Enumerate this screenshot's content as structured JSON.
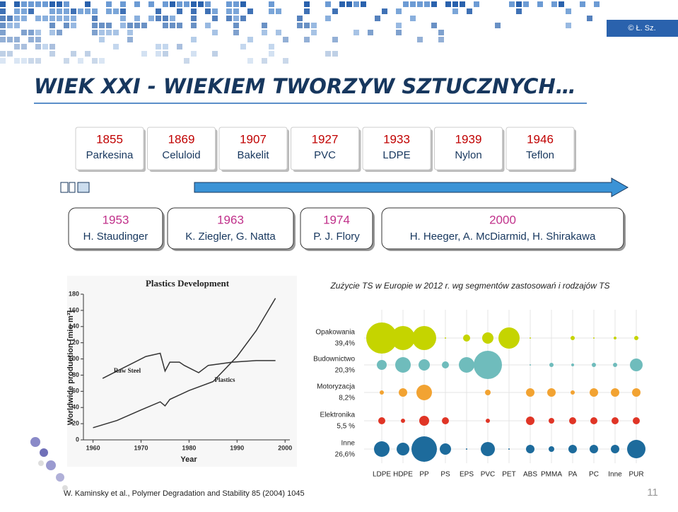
{
  "copyright": "© Ł. Sz.",
  "title": "WIEK XXI - WIEKIEM TWORZYW SZTUCZNYCH…",
  "timeline": [
    {
      "year": "1855",
      "name": "Parkesina"
    },
    {
      "year": "1869",
      "name": "Celuloid"
    },
    {
      "year": "1907",
      "name": "Bakelit"
    },
    {
      "year": "1927",
      "name": "PVC"
    },
    {
      "year": "1933",
      "name": "LDPE"
    },
    {
      "year": "1939",
      "name": "Nylon"
    },
    {
      "year": "1946",
      "name": "Teflon"
    }
  ],
  "nobel": [
    {
      "year": "1953",
      "names": "H. Staudinger"
    },
    {
      "year": "1963",
      "names": "K. Ziegler, G. Natta"
    },
    {
      "year": "1974",
      "names": "P. J. Flory"
    },
    {
      "year": "2000",
      "names": "H. Heeger, A. McDiarmid,  H. Shirakawa"
    }
  ],
  "chart_data": [
    {
      "type": "line",
      "title": "Plastics Development",
      "xlabel": "Year",
      "ylabel": "Worldwide production [mio m³]",
      "xlim": [
        1958,
        2001
      ],
      "ylim": [
        0,
        180
      ],
      "xticks": [
        1960,
        1970,
        1980,
        1990,
        2000
      ],
      "yticks": [
        0,
        20,
        40,
        60,
        80,
        100,
        120,
        140,
        160,
        180
      ],
      "series": [
        {
          "name": "Raw Steel",
          "color": "#333333",
          "x": [
            1962,
            1965,
            1971,
            1974,
            1975,
            1976,
            1978,
            1979,
            1982,
            1984,
            1989,
            1994,
            1998
          ],
          "values": [
            76,
            85,
            103,
            107,
            85,
            96,
            96,
            92,
            83,
            92,
            96,
            98,
            98
          ]
        },
        {
          "name": "Plastics",
          "color": "#333333",
          "x": [
            1960,
            1965,
            1970,
            1974,
            1975,
            1976,
            1980,
            1985,
            1990,
            1994,
            1998
          ],
          "values": [
            15,
            24,
            37,
            47,
            42,
            50,
            61,
            72,
            103,
            135,
            175
          ]
        }
      ]
    },
    {
      "type": "bubble",
      "title": "Zużycie TS w Europie w 2012 r. wg segmentów zastosowań i rodzajów TS",
      "categories": [
        "LDPE",
        "HDPE",
        "PP",
        "PS",
        "EPS",
        "PVC",
        "PET",
        "ABS",
        "PMMA",
        "PA",
        "PC",
        "Inne",
        "PUR"
      ],
      "series": [
        {
          "name": "Opakowania",
          "share": "39,4%",
          "color": "#c5d400",
          "values": [
            22,
            17,
            17,
            1,
            5,
            8,
            15,
            1,
            null,
            3,
            1,
            2,
            3
          ]
        },
        {
          "name": "Budownictwo",
          "share": "20,3%",
          "color": "#6fbcbc",
          "values": [
            7,
            11,
            8,
            5,
            11,
            20,
            null,
            1,
            3,
            2,
            3,
            3,
            9
          ]
        },
        {
          "name": "Motoryzacja",
          "share": "8,2%",
          "color": "#f2a332",
          "values": [
            3,
            6,
            11,
            null,
            null,
            4,
            null,
            6,
            6,
            3,
            6,
            6,
            6
          ]
        },
        {
          "name": "Elektronika",
          "share": "5,5 %",
          "color": "#e03526",
          "values": [
            5,
            3,
            7,
            5,
            null,
            3,
            null,
            6,
            4,
            5,
            5,
            5,
            5
          ]
        },
        {
          "name": "Inne",
          "share": "26,6%",
          "color": "#1d6b9c",
          "values": [
            11,
            9,
            18,
            8,
            1,
            10,
            1,
            6,
            4,
            6,
            6,
            6,
            13
          ]
        }
      ]
    }
  ],
  "citation": "W. Kaminsky et al., Polymer Degradation and Stability 85 (2004) 1045",
  "page_number": "11"
}
